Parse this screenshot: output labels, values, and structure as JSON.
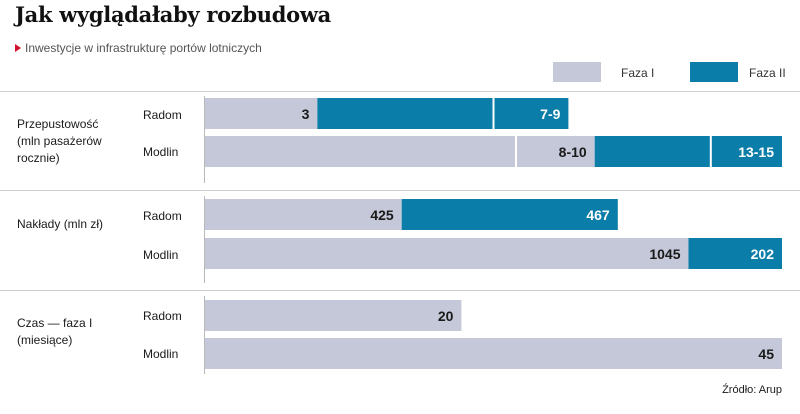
{
  "title": "Jak wyglądałaby rozbudowa",
  "subtitle": "Inwestycje w infrastrukturę portów lotniczych",
  "source": "Źródło: Arup",
  "colors": {
    "phase1": "#c4c8d9",
    "phase2": "#0a7da8",
    "label_on_phase1": "#1a1a1a",
    "label_on_phase2": "#ffffff",
    "separator": "#ffffff"
  },
  "legend": [
    {
      "label": "Faza I",
      "color": "#c4c8d9"
    },
    {
      "label": "Faza II",
      "color": "#0a7da8"
    }
  ],
  "chart_data": {
    "type": "bar",
    "orientation": "horizontal",
    "stacked": true,
    "series": [
      {
        "name": "Faza I"
      },
      {
        "name": "Faza II"
      }
    ],
    "groups": [
      {
        "label": "Przepustowość (mln pasażerów rocznie)",
        "label_lines": [
          "Przepustowość",
          "(mln pasażerów",
          "rocznie)"
        ],
        "rows": [
          {
            "label": "Radom",
            "segments": [
              {
                "series": "Faza I",
                "value": 3,
                "label": "3"
              },
              {
                "series": "Faza II",
                "value": 4.7,
                "label": ""
              },
              {
                "series": "Faza II",
                "value": 2,
                "label": "7-9"
              }
            ]
          },
          {
            "label": "Modlin",
            "segments": [
              {
                "series": "Faza I",
                "value": 8.3,
                "label": ""
              },
              {
                "series": "Faza I",
                "value": 2.1,
                "label": "8-10"
              },
              {
                "series": "Faza II",
                "value": 3.1,
                "label": ""
              },
              {
                "series": "Faza II",
                "value": 1.9,
                "label": "13-15"
              }
            ]
          }
        ]
      },
      {
        "label": "Nakłady (mln zł)",
        "label_lines": [
          "Nakłady (mln zł)"
        ],
        "rows": [
          {
            "label": "Radom",
            "segments": [
              {
                "series": "Faza I",
                "value": 425,
                "label": "425"
              },
              {
                "series": "Faza II",
                "value": 467,
                "label": "467"
              }
            ]
          },
          {
            "label": "Modlin",
            "segments": [
              {
                "series": "Faza I",
                "value": 1045,
                "label": "1045"
              },
              {
                "series": "Faza II",
                "value": 202,
                "label": "202"
              }
            ]
          }
        ]
      },
      {
        "label": "Czas — faza I (miesiące)",
        "label_lines": [
          "Czas — faza I",
          "(miesiące)"
        ],
        "rows": [
          {
            "label": "Radom",
            "segments": [
              {
                "series": "Faza I",
                "value": 20,
                "label": "20"
              }
            ]
          },
          {
            "label": "Modlin",
            "segments": [
              {
                "series": "Faza I",
                "value": 45,
                "label": "45"
              }
            ]
          }
        ]
      }
    ]
  }
}
